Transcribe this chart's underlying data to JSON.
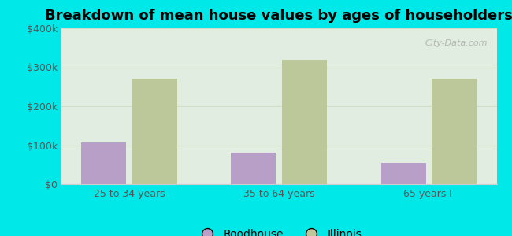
{
  "title": "Breakdown of mean house values by ages of householders",
  "categories": [
    "25 to 34 years",
    "35 to 64 years",
    "65 years+"
  ],
  "roodhouse_values": [
    108000,
    80000,
    55000
  ],
  "illinois_values": [
    270000,
    320000,
    270000
  ],
  "roodhouse_color": "#b89fc8",
  "illinois_color": "#bcc89a",
  "background_outer": "#00e8e8",
  "background_inner_top": "#e8f0e8",
  "background_inner_bottom": "#d8f0d0",
  "ylim": [
    0,
    400000
  ],
  "yticks": [
    0,
    100000,
    200000,
    300000,
    400000
  ],
  "ytick_labels": [
    "$0",
    "$100k",
    "$200k",
    "$300k",
    "$400k"
  ],
  "bar_width": 0.3,
  "title_fontsize": 13,
  "tick_fontsize": 9,
  "legend_fontsize": 10,
  "watermark": "City-Data.com",
  "grid_color": "#d0ddc8"
}
